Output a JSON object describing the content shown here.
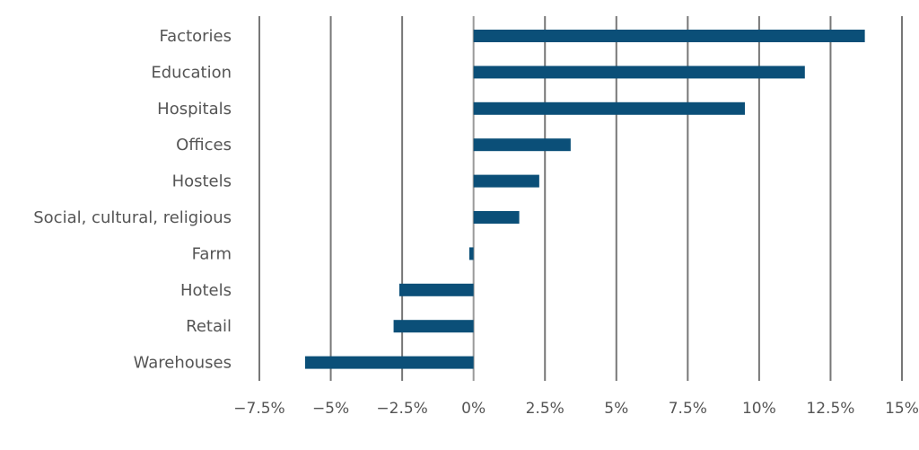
{
  "chart_data": {
    "type": "bar",
    "orientation": "horizontal",
    "title": "",
    "xlabel": "",
    "ylabel": "",
    "categories": [
      "Factories",
      "Education",
      "Hospitals",
      "Offices",
      "Hostels",
      "Social, cultural, religious",
      "Farm",
      "Hotels",
      "Retail",
      "Warehouses"
    ],
    "values": [
      13.7,
      11.6,
      9.5,
      3.4,
      2.3,
      1.6,
      -0.15,
      -2.6,
      -2.8,
      -5.9
    ],
    "xlim": [
      -7.5,
      15
    ],
    "xticks": [
      -7.5,
      -5,
      -2.5,
      0,
      2.5,
      5,
      7.5,
      10,
      12.5,
      15
    ],
    "xtick_labels": [
      "−7.5%",
      "−5%",
      "−2.5%",
      "0%",
      "2.5%",
      "5%",
      "7.5%",
      "10%",
      "12.5%",
      "15%"
    ],
    "grid": true,
    "legend": "none",
    "bar_color": "#0b4f78"
  }
}
